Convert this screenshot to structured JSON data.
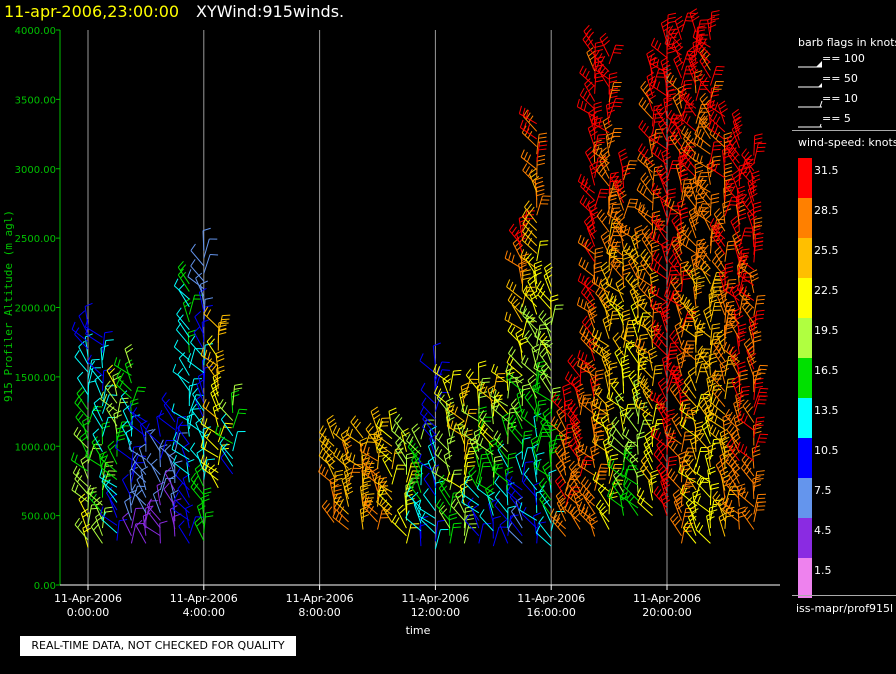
{
  "header": {
    "date_text": "11-apr-2006,23:00:00",
    "title_text": "XYWind:915winds."
  },
  "notice": "REAL-TIME DATA, NOT CHECKED FOR QUALITY",
  "legend": {
    "barb_title": "barb flags in knots",
    "barb_items": [
      "== 100",
      "== 50",
      "== 10",
      "== 5"
    ],
    "speed_title": "wind-speed: knots",
    "speed_levels": [
      {
        "label": "31.5",
        "color": "#ff0000"
      },
      {
        "label": "28.5",
        "color": "#ff8000"
      },
      {
        "label": "25.5",
        "color": "#ffbf00"
      },
      {
        "label": "22.5",
        "color": "#ffff00"
      },
      {
        "label": "19.5",
        "color": "#b0ff40"
      },
      {
        "label": "16.5",
        "color": "#00e000"
      },
      {
        "label": "13.5",
        "color": "#00ffff"
      },
      {
        "label": "10.5",
        "color": "#0000ff"
      },
      {
        "label": "7.5",
        "color": "#6495ed"
      },
      {
        "label": "4.5",
        "color": "#8a2be2"
      },
      {
        "label": "1.5",
        "color": "#ee82ee"
      }
    ],
    "source": "iss-mapr/prof915l"
  },
  "chart_data": {
    "type": "scatter",
    "ylabel": "915 Profiler Altitude (m agl)",
    "xlabel": "time",
    "ylim": [
      0,
      4000
    ],
    "xlim_hours": [
      0,
      24
    ],
    "yticks": [
      "0.00",
      "500.00",
      "1000.00",
      "1500.00",
      "2000.00",
      "2500.00",
      "3000.00",
      "3500.00",
      "4000.00"
    ],
    "xticks": [
      {
        "hour": 0,
        "date": "11-Apr-2006",
        "time": "0:00:00"
      },
      {
        "hour": 4,
        "date": "11-Apr-2006",
        "time": "4:00:00"
      },
      {
        "hour": 8,
        "date": "11-Apr-2006",
        "time": "8:00:00"
      },
      {
        "hour": 12,
        "date": "11-Apr-2006",
        "time": "12:00:00"
      },
      {
        "hour": 16,
        "date": "11-Apr-2006",
        "time": "16:00:00"
      },
      {
        "hour": 20,
        "date": "11-Apr-2006",
        "time": "20:00:00"
      }
    ],
    "grid": "vertical",
    "colors": {
      "axis_y": "#00c000",
      "axis_x": "#ffffff"
    },
    "wind_profiles": [
      {
        "hour": 0.0,
        "alt_low": 270,
        "alt_high": 1900,
        "speed_low": 22.5,
        "speed_high": 10.5
      },
      {
        "hour": 0.5,
        "alt_low": 300,
        "alt_high": 1800,
        "speed_low": 19.5,
        "speed_high": 10.5
      },
      {
        "hour": 1.0,
        "alt_low": 320,
        "alt_high": 1450,
        "speed_low": 10.5,
        "speed_high": 22.5
      },
      {
        "hour": 1.5,
        "alt_low": 300,
        "alt_high": 1600,
        "speed_low": 4.5,
        "speed_high": 19.5
      },
      {
        "hour": 2.0,
        "alt_low": 300,
        "alt_high": 1200,
        "speed_low": 4.5,
        "speed_high": 10.5
      },
      {
        "hour": 2.5,
        "alt_low": 300,
        "alt_high": 1100,
        "speed_low": 4.5,
        "speed_high": 10.5
      },
      {
        "hour": 3.0,
        "alt_low": 350,
        "alt_high": 1250,
        "speed_low": 4.5,
        "speed_high": 10.5
      },
      {
        "hour": 3.5,
        "alt_low": 300,
        "alt_high": 2200,
        "speed_low": 10.5,
        "speed_high": 16.5
      },
      {
        "hour": 4.0,
        "alt_low": 320,
        "alt_high": 2450,
        "speed_low": 16.5,
        "speed_high": 7.5
      },
      {
        "hour": 4.5,
        "alt_low": 700,
        "alt_high": 1900,
        "speed_low": 22.5,
        "speed_high": 25.5
      },
      {
        "hour": 5.0,
        "alt_low": 800,
        "alt_high": 1300,
        "speed_low": 10.5,
        "speed_high": 19.5
      },
      {
        "hour": 8.5,
        "alt_low": 450,
        "alt_high": 1100,
        "speed_low": 28.5,
        "speed_high": 25.5
      },
      {
        "hour": 9.0,
        "alt_low": 400,
        "alt_high": 1050,
        "speed_low": 28.5,
        "speed_high": 25.5
      },
      {
        "hour": 9.5,
        "alt_low": 400,
        "alt_high": 1100,
        "speed_low": 25.5,
        "speed_high": 25.5
      },
      {
        "hour": 10.0,
        "alt_low": 400,
        "alt_high": 1150,
        "speed_low": 28.5,
        "speed_high": 25.5
      },
      {
        "hour": 10.5,
        "alt_low": 450,
        "alt_high": 1150,
        "speed_low": 25.5,
        "speed_high": 22.5
      },
      {
        "hour": 11.0,
        "alt_low": 300,
        "alt_high": 1100,
        "speed_low": 22.5,
        "speed_high": 19.5
      },
      {
        "hour": 11.5,
        "alt_low": 280,
        "alt_high": 1050,
        "speed_low": 10.5,
        "speed_high": 19.5
      },
      {
        "hour": 12.0,
        "alt_low": 260,
        "alt_high": 1600,
        "speed_low": 13.5,
        "speed_high": 10.5
      },
      {
        "hour": 12.5,
        "alt_low": 300,
        "alt_high": 1500,
        "speed_low": 16.5,
        "speed_high": 22.5
      },
      {
        "hour": 13.0,
        "alt_low": 300,
        "alt_high": 1350,
        "speed_low": 19.5,
        "speed_high": 25.5
      },
      {
        "hour": 13.5,
        "alt_low": 300,
        "alt_high": 1500,
        "speed_low": 10.5,
        "speed_high": 22.5
      },
      {
        "hour": 14.0,
        "alt_low": 280,
        "alt_high": 1400,
        "speed_low": 10.5,
        "speed_high": 25.5
      },
      {
        "hour": 14.5,
        "alt_low": 300,
        "alt_high": 1500,
        "speed_low": 10.5,
        "speed_high": 22.5
      },
      {
        "hour": 15.0,
        "alt_low": 300,
        "alt_high": 2600,
        "speed_low": 7.5,
        "speed_high": 31.5
      },
      {
        "hour": 15.5,
        "alt_low": 300,
        "alt_high": 3350,
        "speed_low": 10.5,
        "speed_high": 31.5
      },
      {
        "hour": 16.0,
        "alt_low": 280,
        "alt_high": 2150,
        "speed_low": 13.5,
        "speed_high": 22.5
      },
      {
        "hour": 16.5,
        "alt_low": 350,
        "alt_high": 1300,
        "speed_low": 28.5,
        "speed_high": 31.5
      },
      {
        "hour": 17.0,
        "alt_low": 400,
        "alt_high": 1500,
        "speed_low": 28.5,
        "speed_high": 31.5
      },
      {
        "hour": 17.5,
        "alt_low": 350,
        "alt_high": 3900,
        "speed_low": 28.5,
        "speed_high": 31.5
      },
      {
        "hour": 18.0,
        "alt_low": 400,
        "alt_high": 3850,
        "speed_low": 22.5,
        "speed_high": 31.5
      },
      {
        "hour": 18.5,
        "alt_low": 500,
        "alt_high": 3000,
        "speed_low": 16.5,
        "speed_high": 31.5
      },
      {
        "hour": 19.0,
        "alt_low": 500,
        "alt_high": 2500,
        "speed_low": 16.5,
        "speed_high": 28.5
      },
      {
        "hour": 19.5,
        "alt_low": 500,
        "alt_high": 3700,
        "speed_low": 22.5,
        "speed_high": 31.5
      },
      {
        "hour": 20.0,
        "alt_low": 500,
        "alt_high": 4000,
        "speed_low": 31.5,
        "speed_high": 31.5
      },
      {
        "hour": 20.5,
        "alt_low": 300,
        "alt_high": 4000,
        "speed_low": 28.5,
        "speed_high": 31.5
      },
      {
        "hour": 21.0,
        "alt_low": 300,
        "alt_high": 4000,
        "speed_low": 22.5,
        "speed_high": 31.5
      },
      {
        "hour": 21.5,
        "alt_low": 300,
        "alt_high": 4000,
        "speed_low": 22.5,
        "speed_high": 31.5
      },
      {
        "hour": 22.0,
        "alt_low": 350,
        "alt_high": 3400,
        "speed_low": 25.5,
        "speed_high": 31.5
      },
      {
        "hour": 22.5,
        "alt_low": 400,
        "alt_high": 3300,
        "speed_low": 28.5,
        "speed_high": 31.5
      },
      {
        "hour": 23.0,
        "alt_low": 400,
        "alt_high": 3100,
        "speed_low": 28.5,
        "speed_high": 31.5
      }
    ]
  }
}
